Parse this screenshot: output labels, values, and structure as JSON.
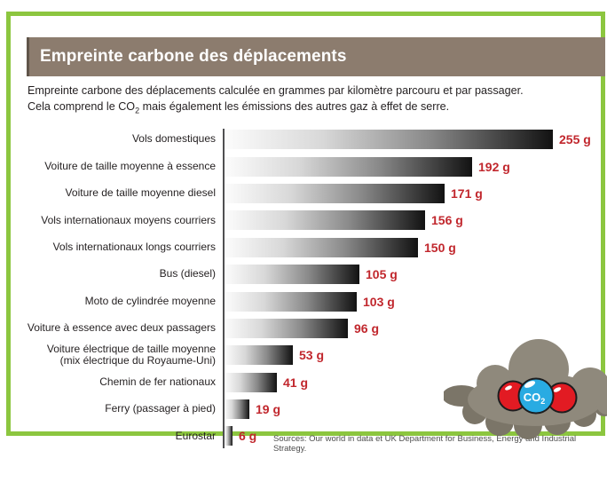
{
  "frame": {
    "border_color": "#8cc63f"
  },
  "header": {
    "title": "Empreinte carbone des déplacements",
    "bg_color": "#8c7c6e",
    "text_color": "#ffffff"
  },
  "intro": {
    "line1": "Empreinte carbone des déplacements calculée en grammes par kilomètre parcouru et par passager.",
    "line2_pre": "Cela comprend le CO",
    "line2_sub": "2",
    "line2_post": " mais également les émissions des autres gaz à effet de serre."
  },
  "chart_data": {
    "type": "bar",
    "orientation": "horizontal",
    "unit": "g/km/passager",
    "categories": [
      "Vols domestiques",
      "Voiture de taille moyenne à essence",
      "Voiture de taille moyenne diesel",
      "Vols internationaux moyens courriers",
      "Vols internationaux longs courriers",
      "Bus (diesel)",
      "Moto de cylindrée moyenne",
      "Voiture à essence avec deux passagers",
      "Voiture électrique de taille moyenne (mix électrique du Royaume-Uni)",
      "Chemin de fer nationaux",
      "Ferry (passager à pied)",
      "Eurostar"
    ],
    "values": [
      255,
      192,
      171,
      156,
      150,
      105,
      103,
      96,
      53,
      41,
      19,
      6
    ],
    "value_labels": [
      "255 g",
      "192 g",
      "171 g",
      "156 g",
      "150 g",
      "105 g",
      "103 g",
      "96 g",
      "53 g",
      "41 g",
      "19 g",
      "6 g"
    ],
    "xlim": [
      0,
      255
    ],
    "grid": false,
    "legend": false,
    "bar_gradient": [
      "#fcfcfc",
      "#d8d8d8",
      "#8a8a8a",
      "#121212"
    ],
    "value_color": "#c1272d",
    "axis_color": "#4f4f51"
  },
  "source": {
    "text": "Sources: Our world in data et UK Department for Business, Energy and Industrial Strategy."
  },
  "illustration": {
    "name": "co2-cloud-illustration",
    "cloud_color": "#8f897c",
    "cloud_shadow_color": "#7b7568",
    "molecule": {
      "label_pre": "CO",
      "label_sub": "2",
      "carbon_color": "#29abe2",
      "oxygen_color": "#e21b23",
      "outline_color": "#1d1d1f"
    }
  }
}
